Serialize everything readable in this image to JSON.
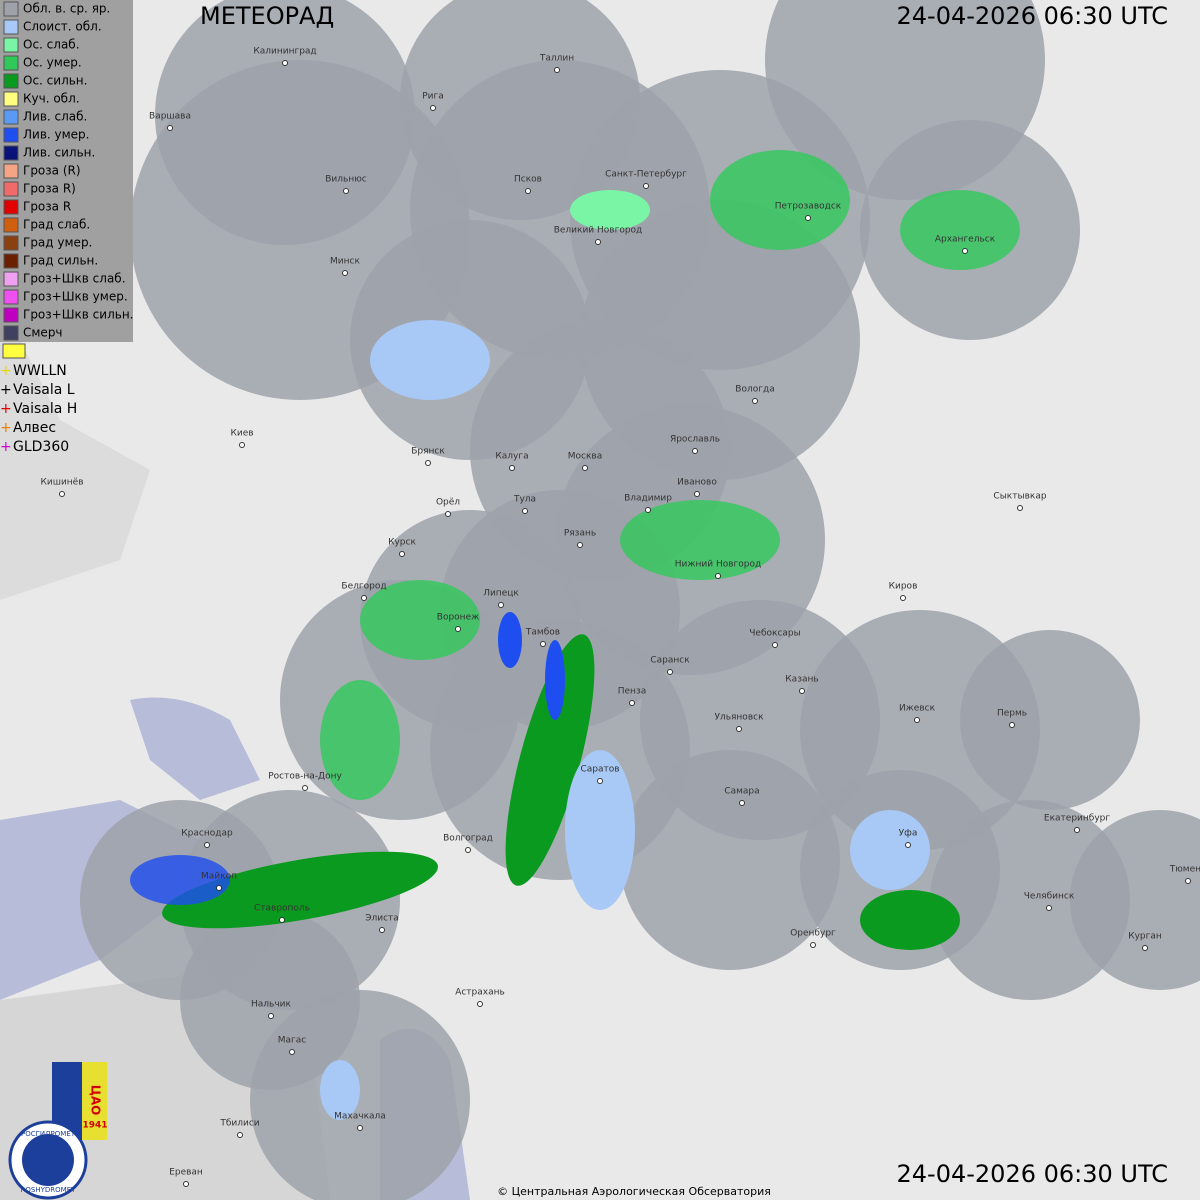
{
  "header": {
    "title": "МЕТЕОРАД",
    "timestamp_top": "24-04-2026  06:30 UTC",
    "timestamp_bottom": "24-04-2026  06:30 UTC"
  },
  "legend": {
    "items": [
      {
        "label": "Обл. в. ср. яр.",
        "color": "#9ea2aa"
      },
      {
        "label": "Слоист. обл.",
        "color": "#a8c8f5"
      },
      {
        "label": "Ос. слаб.",
        "color": "#7af5a5"
      },
      {
        "label": "Ос. умер.",
        "color": "#2fc95a"
      },
      {
        "label": "Ос. сильн.",
        "color": "#0b9a20"
      },
      {
        "label": "Куч. обл.",
        "color": "#ffff80"
      },
      {
        "label": "Лив. слаб.",
        "color": "#5a9af5"
      },
      {
        "label": "Лив. умер.",
        "color": "#1e4ef0"
      },
      {
        "label": "Лив. сильн.",
        "color": "#0a1478"
      },
      {
        "label": "Гроза (R)",
        "color": "#f5a585"
      },
      {
        "label": "Гроза R)",
        "color": "#f06a6a"
      },
      {
        "label": "Гроза R",
        "color": "#e00000"
      },
      {
        "label": "Град слаб.",
        "color": "#d06010"
      },
      {
        "label": "Град умер.",
        "color": "#8a4010"
      },
      {
        "label": "Град сильн.",
        "color": "#6a2000"
      },
      {
        "label": "Гроз+Шкв слаб.",
        "color": "#f0a0f0"
      },
      {
        "label": "Гроз+Шкв умер.",
        "color": "#f050f0"
      },
      {
        "label": "Гроз+Шкв сильн.",
        "color": "#c000c0"
      },
      {
        "label": "Смерч",
        "color": "#404060"
      }
    ],
    "lightning": [
      {
        "label": "WWLLN",
        "color": "#e8d800"
      },
      {
        "label": "Vaisala L",
        "color": "#000000"
      },
      {
        "label": "Vaisala H",
        "color": "#e00000"
      },
      {
        "label": "Алвес",
        "color": "#f08000"
      },
      {
        "label": "GLD360",
        "color": "#d000d0"
      }
    ]
  },
  "cities": [
    "Калининград",
    "Таллин",
    "Рига",
    "Варшава",
    "Вильнюс",
    "Псков",
    "Санкт-Петербург",
    "Петрозаводск",
    "Архангельск",
    "Великий Новгород",
    "Минск",
    "Вологда",
    "Киев",
    "Брянск",
    "Калуга",
    "Москва",
    "Ярославль",
    "Иваново",
    "Кишинёв",
    "Орёл",
    "Тула",
    "Владимир",
    "Сыктывкар",
    "Рязань",
    "Курск",
    "Нижний Новгород",
    "Белгород",
    "Липецк",
    "Киров",
    "Воронеж",
    "Тамбов",
    "Чебоксары",
    "Саранск",
    "Пенза",
    "Казань",
    "Ижевск",
    "Пермь",
    "Ульяновск",
    "Ростов-на-Дону",
    "Саратов",
    "Самара",
    "Уфа",
    "Екатеринбург",
    "Краснодар",
    "Волгоград",
    "Майкоп",
    "Челябинск",
    "Тюмень",
    "Ставрополь",
    "Элиста",
    "Оренбург",
    "Курган",
    "Астрахань",
    "Нальчик",
    "Магас",
    "Махачкала",
    "Тбилиси",
    "Ереван"
  ],
  "logos": {
    "cao": "ЦАО",
    "year": "1941",
    "org_ru": "РОСГИДРОМЕТ",
    "org_en": "ROSHYDROMET"
  },
  "footer": {
    "copyright": "© Центральная Аэрологическая Обсерватория"
  }
}
